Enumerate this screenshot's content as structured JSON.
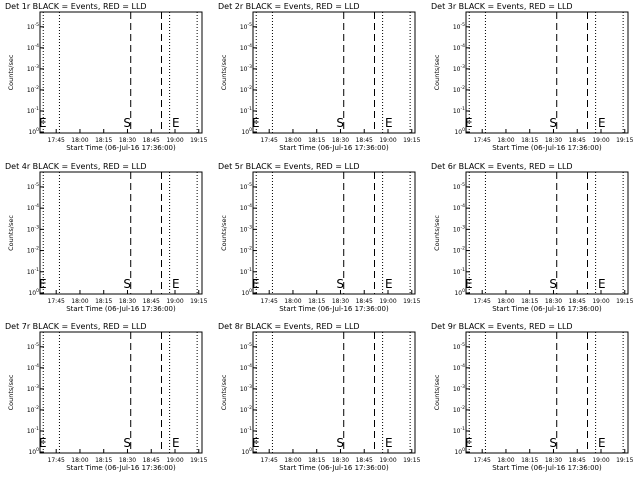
{
  "chart_data": [
    {
      "type": "line",
      "title": "Det 1r BLACK = Events, RED = LLD",
      "xlabel": "Start Time (06-Jul-16 17:36:00)",
      "ylabel": "Counts/sec",
      "x_ticks": [
        "17:45",
        "18:00",
        "18:15",
        "18:30",
        "18:45",
        "19:00",
        "19:15"
      ],
      "y_scale": "log",
      "y_ticks": [
        {
          "base": "10",
          "exp": "0"
        },
        {
          "base": "10",
          "exp": "-1"
        },
        {
          "base": "10",
          "exp": "-2"
        },
        {
          "base": "10",
          "exp": "-3"
        },
        {
          "base": "10",
          "exp": "-4"
        },
        {
          "base": "10",
          "exp": "-5"
        }
      ],
      "markers": {
        "E_left": "E",
        "S": "S",
        "E_right": "E"
      },
      "series": []
    },
    {
      "type": "line",
      "title": "Det 2r BLACK = Events, RED = LLD",
      "xlabel": "Start Time (06-Jul-16 17:36:00)",
      "ylabel": "Counts/sec",
      "x_ticks": [
        "17:45",
        "18:00",
        "18:15",
        "18:30",
        "18:45",
        "19:00",
        "19:15"
      ],
      "y_scale": "log",
      "y_ticks": [
        {
          "base": "10",
          "exp": "0"
        },
        {
          "base": "10",
          "exp": "-1"
        },
        {
          "base": "10",
          "exp": "-2"
        },
        {
          "base": "10",
          "exp": "-3"
        },
        {
          "base": "10",
          "exp": "-4"
        },
        {
          "base": "10",
          "exp": "-5"
        }
      ],
      "markers": {
        "E_left": "E",
        "S": "S",
        "E_right": "E"
      },
      "series": []
    },
    {
      "type": "line",
      "title": "Det 3r BLACK = Events, RED = LLD",
      "xlabel": "Start Time (06-Jul-16 17:36:00)",
      "ylabel": "Counts/sec",
      "x_ticks": [
        "17:45",
        "18:00",
        "18:15",
        "18:30",
        "18:45",
        "19:00",
        "19:15"
      ],
      "y_scale": "log",
      "y_ticks": [
        {
          "base": "10",
          "exp": "0"
        },
        {
          "base": "10",
          "exp": "-1"
        },
        {
          "base": "10",
          "exp": "-2"
        },
        {
          "base": "10",
          "exp": "-3"
        },
        {
          "base": "10",
          "exp": "-4"
        },
        {
          "base": "10",
          "exp": "-5"
        }
      ],
      "markers": {
        "E_left": "E",
        "S": "S",
        "E_right": "E"
      },
      "series": []
    },
    {
      "type": "line",
      "title": "Det 4r BLACK = Events, RED = LLD",
      "xlabel": "Start Time (06-Jul-16 17:36:00)",
      "ylabel": "Counts/sec",
      "x_ticks": [
        "17:45",
        "18:00",
        "18:15",
        "18:30",
        "18:45",
        "19:00",
        "19:15"
      ],
      "y_scale": "log",
      "y_ticks": [
        {
          "base": "10",
          "exp": "0"
        },
        {
          "base": "10",
          "exp": "-1"
        },
        {
          "base": "10",
          "exp": "-2"
        },
        {
          "base": "10",
          "exp": "-3"
        },
        {
          "base": "10",
          "exp": "-4"
        },
        {
          "base": "10",
          "exp": "-5"
        }
      ],
      "markers": {
        "E_left": "E",
        "S": "S",
        "E_right": "E"
      },
      "series": []
    },
    {
      "type": "line",
      "title": "Det 5r BLACK = Events, RED = LLD",
      "xlabel": "Start Time (06-Jul-16 17:36:00)",
      "ylabel": "Counts/sec",
      "x_ticks": [
        "17:45",
        "18:00",
        "18:15",
        "18:30",
        "18:45",
        "19:00",
        "19:15"
      ],
      "y_scale": "log",
      "y_ticks": [
        {
          "base": "10",
          "exp": "0"
        },
        {
          "base": "10",
          "exp": "-1"
        },
        {
          "base": "10",
          "exp": "-2"
        },
        {
          "base": "10",
          "exp": "-3"
        },
        {
          "base": "10",
          "exp": "-4"
        },
        {
          "base": "10",
          "exp": "-5"
        }
      ],
      "markers": {
        "E_left": "E",
        "S": "S",
        "E_right": "E"
      },
      "series": []
    },
    {
      "type": "line",
      "title": "Det 6r BLACK = Events, RED = LLD",
      "xlabel": "Start Time (06-Jul-16 17:36:00)",
      "ylabel": "Counts/sec",
      "x_ticks": [
        "17:45",
        "18:00",
        "18:15",
        "18:30",
        "18:45",
        "19:00",
        "19:15"
      ],
      "y_scale": "log",
      "y_ticks": [
        {
          "base": "10",
          "exp": "0"
        },
        {
          "base": "10",
          "exp": "-1"
        },
        {
          "base": "10",
          "exp": "-2"
        },
        {
          "base": "10",
          "exp": "-3"
        },
        {
          "base": "10",
          "exp": "-4"
        },
        {
          "base": "10",
          "exp": "-5"
        }
      ],
      "markers": {
        "E_left": "E",
        "S": "S",
        "E_right": "E"
      },
      "series": []
    },
    {
      "type": "line",
      "title": "Det 7r BLACK = Events, RED = LLD",
      "xlabel": "Start Time (06-Jul-16 17:36:00)",
      "ylabel": "Counts/sec",
      "x_ticks": [
        "17:45",
        "18:00",
        "18:15",
        "18:30",
        "18:45",
        "19:00",
        "19:15"
      ],
      "y_scale": "log",
      "y_ticks": [
        {
          "base": "10",
          "exp": "0"
        },
        {
          "base": "10",
          "exp": "-1"
        },
        {
          "base": "10",
          "exp": "-2"
        },
        {
          "base": "10",
          "exp": "-3"
        },
        {
          "base": "10",
          "exp": "-4"
        },
        {
          "base": "10",
          "exp": "-5"
        }
      ],
      "markers": {
        "E_left": "E",
        "S": "S",
        "E_right": "E"
      },
      "series": []
    },
    {
      "type": "line",
      "title": "Det 8r BLACK = Events, RED = LLD",
      "xlabel": "Start Time (06-Jul-16 17:36:00)",
      "ylabel": "Counts/sec",
      "x_ticks": [
        "17:45",
        "18:00",
        "18:15",
        "18:30",
        "18:45",
        "19:00",
        "19:15"
      ],
      "y_scale": "log",
      "y_ticks": [
        {
          "base": "10",
          "exp": "0"
        },
        {
          "base": "10",
          "exp": "-1"
        },
        {
          "base": "10",
          "exp": "-2"
        },
        {
          "base": "10",
          "exp": "-3"
        },
        {
          "base": "10",
          "exp": "-4"
        },
        {
          "base": "10",
          "exp": "-5"
        }
      ],
      "markers": {
        "E_left": "E",
        "S": "S",
        "E_right": "E"
      },
      "series": []
    },
    {
      "type": "line",
      "title": "Det 9r BLACK = Events, RED = LLD",
      "xlabel": "Start Time (06-Jul-16 17:36:00)",
      "ylabel": "Counts/sec",
      "x_ticks": [
        "17:45",
        "18:00",
        "18:15",
        "18:30",
        "18:45",
        "19:00",
        "19:15"
      ],
      "y_scale": "log",
      "y_ticks": [
        {
          "base": "10",
          "exp": "0"
        },
        {
          "base": "10",
          "exp": "-1"
        },
        {
          "base": "10",
          "exp": "-2"
        },
        {
          "base": "10",
          "exp": "-3"
        },
        {
          "base": "10",
          "exp": "-4"
        },
        {
          "base": "10",
          "exp": "-5"
        }
      ],
      "markers": {
        "E_left": "E",
        "S": "S",
        "E_right": "E"
      },
      "series": []
    }
  ]
}
